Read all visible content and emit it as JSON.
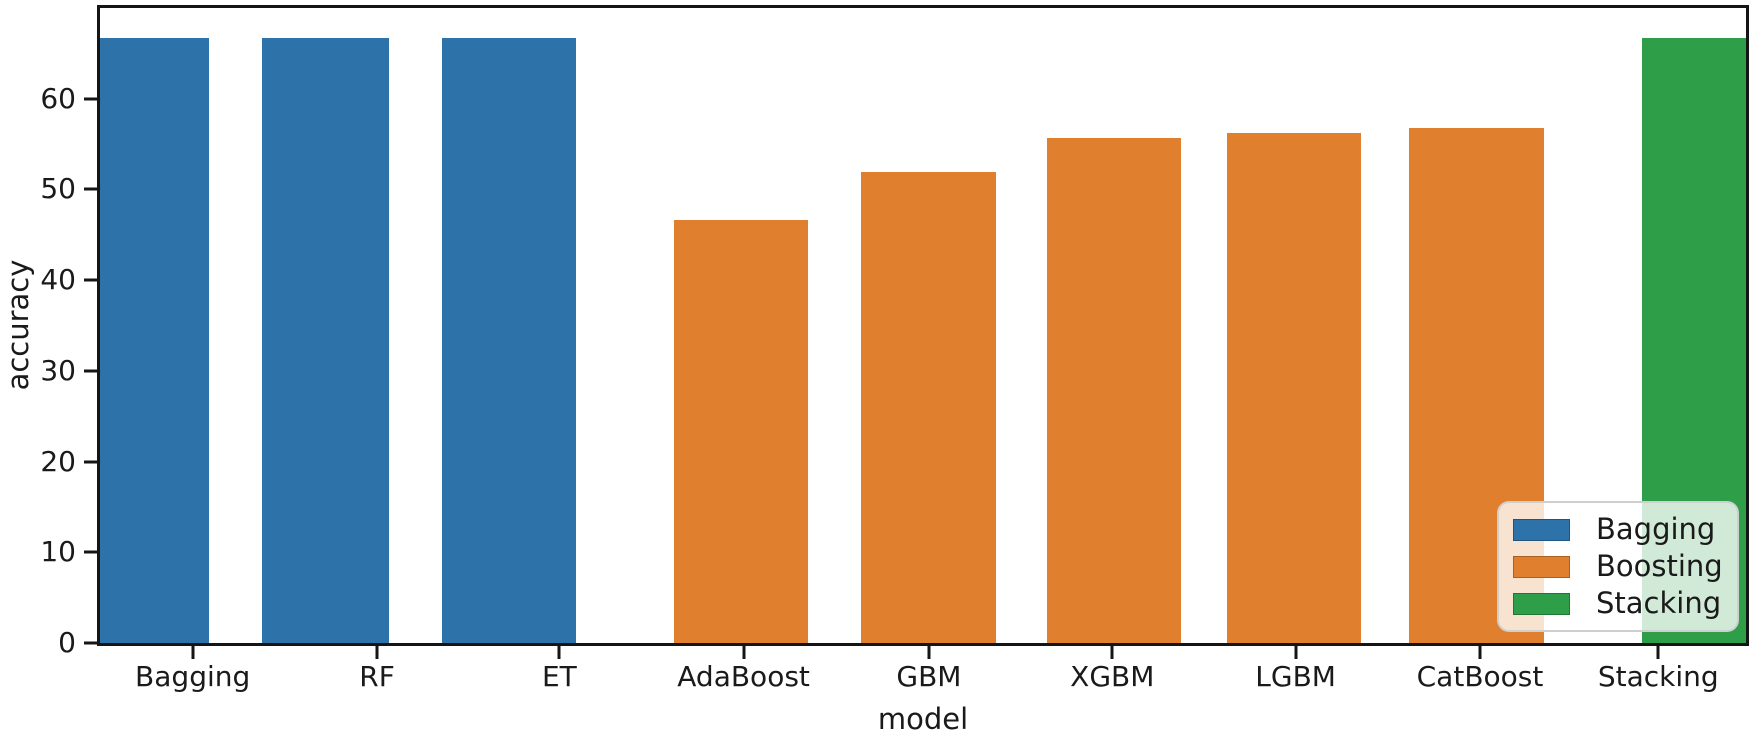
{
  "chart_data": {
    "type": "bar",
    "title": "",
    "xlabel": "model",
    "ylabel": "accuracy",
    "ylim": [
      0,
      70
    ],
    "yticks": [
      0,
      10,
      20,
      30,
      40,
      50,
      60
    ],
    "grid": false,
    "categories": [
      "Bagging",
      "RF",
      "ET",
      "AdaBoost",
      "GBM",
      "XGBM",
      "LGBM",
      "CatBoost",
      "Stacking"
    ],
    "values": [
      66.7,
      66.7,
      66.7,
      46.6,
      51.9,
      55.7,
      56.2,
      56.8,
      66.7
    ],
    "groups": [
      "Bagging",
      "Bagging",
      "Bagging",
      "Boosting",
      "Boosting",
      "Boosting",
      "Boosting",
      "Boosting",
      "Stacking"
    ],
    "group_colors": {
      "Bagging": "#2d72a8",
      "Boosting": "#e0802f",
      "Stacking": "#2f9e48"
    },
    "legend": {
      "position": "lower right",
      "entries": [
        {
          "label": "Bagging",
          "color": "#2d72a8"
        },
        {
          "label": "Boosting",
          "color": "#e0802f"
        },
        {
          "label": "Stacking",
          "color": "#2f9e48"
        }
      ]
    }
  }
}
